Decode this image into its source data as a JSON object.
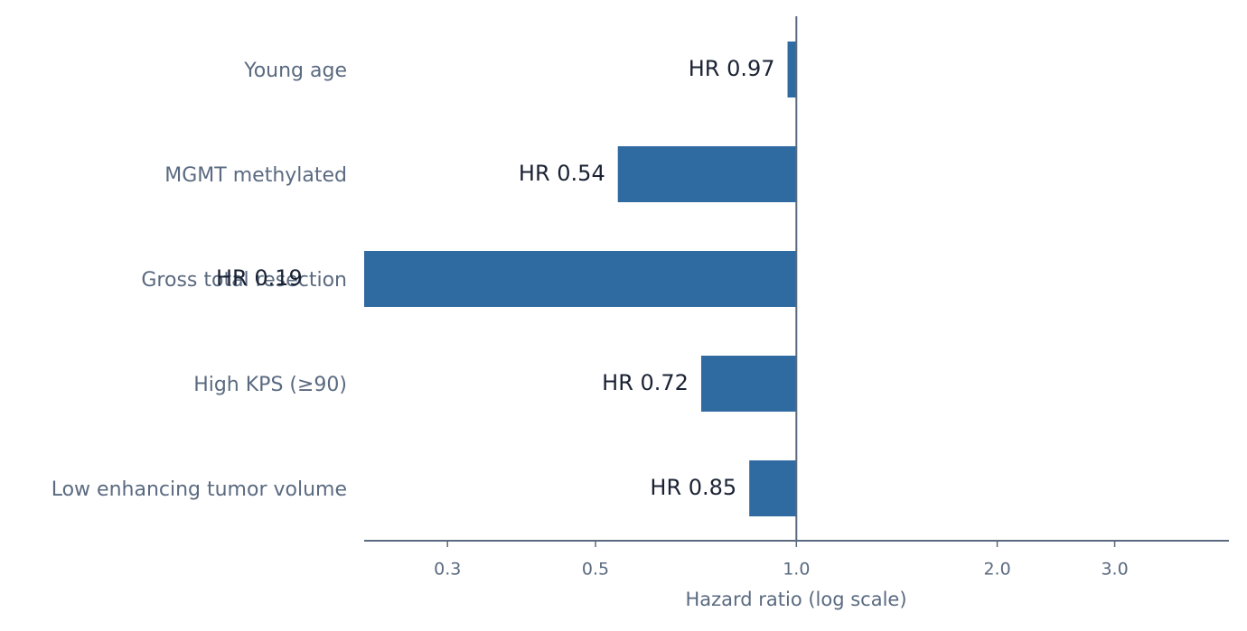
{
  "chart_data": {
    "type": "bar",
    "orientation": "horizontal",
    "categories": [
      "Young age",
      "MGMT methylated",
      "Gross total resection",
      "High KPS (≥90)",
      "Low enhancing tumor volume"
    ],
    "values": [
      0.97,
      0.54,
      0.19,
      0.72,
      0.85
    ],
    "value_labels": [
      "HR 0.97",
      "HR 0.54",
      "HR 0.19",
      "HR 0.72",
      "HR 0.85"
    ],
    "color": "#2f6aa0",
    "x_label": "Hazard ratio (log scale)",
    "xscale": "log",
    "xlim": [
      0.225,
      4.45
    ],
    "xticks": [
      0.3,
      0.5,
      {
        "value": 1,
        "label": "1.0"
      },
      {
        "value": 2,
        "label": "2.0"
      },
      {
        "value": 3,
        "label": "3.0"
      }
    ],
    "reference_line": 1
  }
}
